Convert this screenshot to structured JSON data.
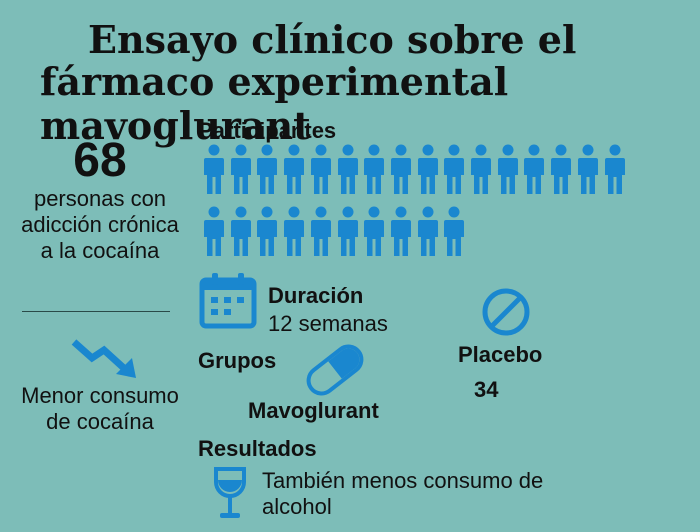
{
  "title": {
    "line1": "Ensayo clínico sobre el",
    "line2": "fármaco experimental mavoglurant"
  },
  "participants": {
    "count": "68",
    "description": "personas con adicción crónica a la cocaína",
    "label": "Participantes",
    "icon_row1_count": 16,
    "icon_row2_count": 10,
    "icon_color": "#1a87cf"
  },
  "duration": {
    "label": "Duración",
    "value": "12 semanas",
    "icon": "calendar-icon"
  },
  "groups": {
    "label": "Grupos",
    "mavoglurant_label": "Mavoglurant",
    "placebo_label": "Placebo",
    "placebo_count": "34"
  },
  "results": {
    "label": "Resultados",
    "main": "Menor consumo de cocaína",
    "secondary": "También menos consumo de alcohol"
  },
  "colors": {
    "background": "#7dbdb8",
    "accent": "#1a87cf",
    "text": "#111111"
  }
}
